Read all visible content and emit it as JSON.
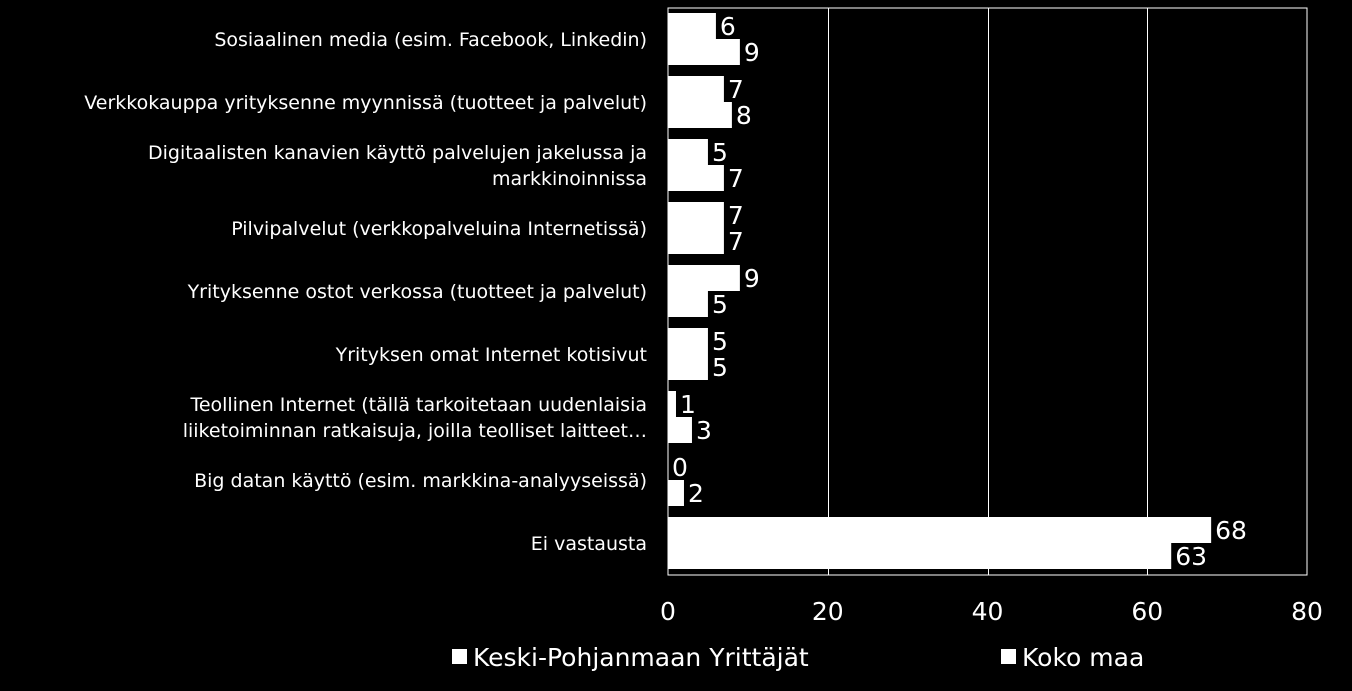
{
  "chart_data": {
    "type": "bar",
    "orientation": "horizontal",
    "categories": [
      [
        "Sosiaalinen media (esim. Facebook, Linkedin)"
      ],
      [
        "Verkkokauppa yrityksenne myynnissä (tuotteet ja palvelut)"
      ],
      [
        "Digitaalisten kanavien käyttö palvelujen jakelussa ja",
        "markkinoinnissa"
      ],
      [
        "Pilvipalvelut  (verkkopalveluina Internetissä)"
      ],
      [
        "Yrityksenne ostot verkossa (tuotteet ja palvelut)"
      ],
      [
        "Yrityksen omat Internet kotisivut"
      ],
      [
        "Teollinen Internet (tällä tarkoitetaan uudenlaisia",
        "liiketoiminnan ratkaisuja, joilla teolliset laitteet…"
      ],
      [
        "Big datan käyttö (esim. markkina-analyyseissä)"
      ],
      [
        "Ei vastausta"
      ]
    ],
    "series": [
      {
        "name": "Keski-Pohjanmaan Yrittäjät",
        "values": [
          6,
          7,
          5,
          7,
          9,
          5,
          1,
          0,
          68
        ]
      },
      {
        "name": "Koko maa",
        "values": [
          9,
          8,
          7,
          7,
          5,
          5,
          3,
          2,
          63
        ]
      }
    ],
    "xlim": [
      0,
      80
    ],
    "xticks": [
      0,
      20,
      40,
      60,
      80
    ],
    "grid": true,
    "legend_position": "bottom",
    "colors": {
      "background": "#000000",
      "bar_fill": "#ffffff",
      "text": "#ffffff",
      "gridline": "#ffffff"
    }
  }
}
